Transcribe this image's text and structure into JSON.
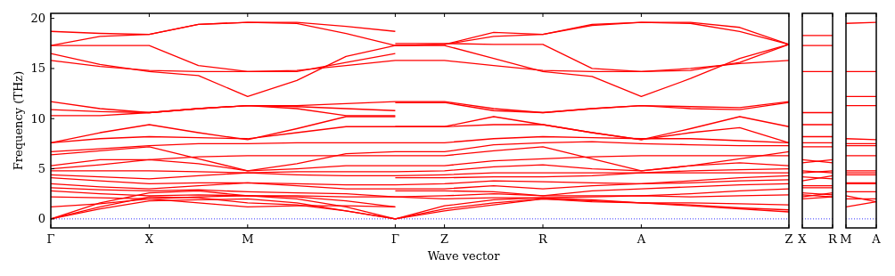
{
  "chart_data": [
    {
      "type": "line",
      "xlabel": "Wave vector",
      "ylabel": "Frequency (THz)",
      "ylim": [
        -0.9,
        20.5
      ],
      "yticks": [
        0,
        5,
        10,
        15,
        20
      ],
      "categories": [
        "Γ",
        null,
        "X",
        null,
        "M",
        null,
        null,
        "Γ",
        "Z",
        null,
        "R",
        null,
        "A",
        null,
        null,
        "Z"
      ],
      "ref_lines": [
        {
          "axis": "y",
          "value": 0,
          "color": "#0000ff",
          "line_style": "dotted"
        }
      ],
      "series": [
        {
          "color": "#ff0000",
          "values": [
            18.7,
            18.5,
            18.4,
            19.4,
            19.6,
            19.6,
            19.2,
            18.7,
            null,
            null,
            null,
            null,
            null,
            null,
            null,
            null
          ]
        },
        {
          "color": "#ff0000",
          "values": [
            17.3,
            18.2,
            18.4,
            19.4,
            19.6,
            19.5,
            18.5,
            17.3,
            17.4,
            18.6,
            18.4,
            19.4,
            19.6,
            19.6,
            19.1,
            17.4
          ]
        },
        {
          "color": "#ff0000",
          "values": [
            17.3,
            17.3,
            17.3,
            15.3,
            14.7,
            14.7,
            15.6,
            16.5,
            null,
            null,
            null,
            null,
            null,
            null,
            null,
            null
          ]
        },
        {
          "color": "#ff0000",
          "values": [
            16.5,
            15.4,
            14.7,
            14.3,
            12.2,
            13.8,
            16.2,
            17.3,
            17.4,
            18.2,
            18.4,
            19.3,
            19.6,
            19.5,
            18.7,
            17.4
          ]
        },
        {
          "color": "#ff0000",
          "values": [
            15.8,
            15.2,
            14.8,
            14.7,
            14.7,
            14.8,
            15.3,
            15.8,
            15.8,
            15.3,
            14.8,
            14.7,
            14.7,
            15.0,
            15.5,
            15.8
          ]
        },
        {
          "color": "#ff0000",
          "values": [
            11.7,
            11.0,
            10.6,
            11.0,
            11.3,
            11.3,
            11.5,
            11.7,
            11.7,
            11.0,
            10.6,
            11.0,
            11.3,
            11.2,
            11.1,
            11.7
          ]
        },
        {
          "color": "#ff0000",
          "values": [
            10.9,
            10.7,
            10.6,
            11.0,
            11.3,
            11.2,
            11.0,
            10.8,
            null,
            null,
            null,
            null,
            null,
            null,
            null,
            null
          ]
        },
        {
          "color": "#ff0000",
          "values": [
            10.3,
            10.3,
            10.6,
            11.0,
            11.3,
            11.0,
            10.3,
            10.3,
            null,
            null,
            null,
            null,
            null,
            null,
            null,
            null
          ]
        },
        {
          "color": "#ff0000",
          "values": [
            7.6,
            8.6,
            9.4,
            8.6,
            7.9,
            9.0,
            10.2,
            10.2,
            null,
            null,
            null,
            null,
            null,
            null,
            null,
            null
          ]
        },
        {
          "color": "#ff0000",
          "values": [
            7.6,
            8.0,
            8.2,
            8.1,
            8.0,
            8.6,
            9.2,
            9.2,
            9.2,
            10.2,
            9.4,
            8.6,
            7.9,
            9.0,
            10.2,
            9.2
          ]
        },
        {
          "color": "#ff0000",
          "values": [
            6.7,
            7.0,
            7.3,
            7.5,
            7.5,
            7.6,
            7.6,
            7.6,
            7.6,
            8.0,
            8.2,
            8.1,
            8.0,
            8.0,
            7.8,
            7.6
          ]
        },
        {
          "color": "#ff0000",
          "values": [
            6.4,
            6.8,
            7.2,
            6.0,
            4.8,
            5.5,
            6.5,
            6.7,
            6.7,
            7.4,
            7.6,
            7.7,
            7.5,
            7.4,
            7.3,
            7.3
          ]
        },
        {
          "color": "#ff0000",
          "values": [
            5.3,
            5.9,
            5.9,
            6.2,
            6.3,
            6.3,
            6.3,
            6.3,
            6.3,
            6.8,
            7.2,
            6.0,
            4.8,
            5.3,
            6.0,
            6.7
          ]
        },
        {
          "color": "#ff0000",
          "values": [
            5.0,
            5.4,
            5.9,
            5.5,
            4.8,
            5.0,
            5.3,
            5.3,
            5.3,
            5.8,
            6.0,
            6.2,
            6.3,
            6.3,
            6.3,
            6.3
          ]
        },
        {
          "color": "#ff0000",
          "values": [
            4.8,
            4.8,
            4.8,
            4.7,
            4.6,
            4.7,
            4.7,
            4.7,
            4.8,
            5.2,
            5.4,
            5.0,
            4.8,
            5.3,
            5.6,
            5.3
          ]
        },
        {
          "color": "#ff0000",
          "values": [
            4.4,
            4.2,
            4.0,
            4.3,
            4.6,
            4.4,
            4.3,
            4.3,
            4.4,
            4.6,
            4.6,
            4.6,
            4.6,
            4.8,
            4.9,
            5.0
          ]
        },
        {
          "color": "#ff0000",
          "values": [
            4.1,
            3.8,
            3.5,
            3.6,
            3.6,
            3.5,
            3.4,
            3.4,
            3.5,
            3.8,
            3.7,
            3.6,
            3.5,
            3.8,
            4.1,
            4.3
          ]
        },
        {
          "color": "#ff0000",
          "values": [
            3.5,
            3.2,
            3.0,
            3.3,
            3.6,
            3.3,
            3.0,
            3.0,
            3.0,
            3.3,
            3.0,
            3.3,
            3.5,
            3.6,
            3.8,
            3.9
          ]
        },
        {
          "color": "#ff0000",
          "values": [
            3.1,
            2.9,
            2.8,
            2.9,
            2.7,
            2.6,
            2.5,
            2.2,
            2.0,
            2.1,
            2.1,
            2.2,
            2.3,
            2.2,
            2.3,
            2.4
          ]
        },
        {
          "color": "#ff0000",
          "values": [
            2.8,
            2.5,
            2.3,
            2.4,
            2.3,
            2.3,
            2.2,
            2.2,
            2.3,
            2.5,
            2.3,
            2.3,
            2.3,
            2.5,
            2.8,
            3.0
          ]
        },
        {
          "color": "#ff0000",
          "values": [
            2.2,
            2.1,
            2.0,
            2.2,
            2.3,
            2.2,
            1.8,
            1.2,
            null,
            null,
            null,
            null,
            null,
            null,
            null,
            null
          ]
        },
        {
          "color": "#ff0000",
          "values": [
            1.2,
            1.5,
            2.0,
            1.6,
            1.2,
            1.3,
            1.3,
            1.2,
            null,
            null,
            null,
            null,
            null,
            null,
            null,
            null
          ]
        },
        {
          "color": "#ff0000",
          "values": [
            0,
            1.0,
            1.8,
            1.9,
            2.0,
            1.6,
            0.8,
            0,
            1.3,
            1.9,
            2.1,
            1.9,
            1.6,
            1.6,
            1.5,
            1.4
          ]
        },
        {
          "color": "#ff0000",
          "values": [
            0,
            1.2,
            2.2,
            2.1,
            1.6,
            1.4,
            0.8,
            0,
            1.0,
            1.6,
            2.0,
            1.8,
            1.6,
            1.4,
            1.1,
            0.9
          ]
        },
        {
          "color": "#ff0000",
          "values": [
            0,
            1.6,
            2.6,
            2.8,
            2.3,
            2.0,
            1.2,
            0,
            0.8,
            1.4,
            2.0,
            1.7,
            1.6,
            1.3,
            1.0,
            0.7
          ]
        },
        {
          "color": "#ff0000",
          "values": [
            null,
            null,
            null,
            null,
            null,
            null,
            null,
            17.5,
            17.5,
            17.4,
            17.4,
            15.0,
            14.7,
            14.8,
            15.6,
            17.4
          ]
        },
        {
          "color": "#ff0000",
          "values": [
            null,
            null,
            null,
            null,
            null,
            null,
            null,
            17.3,
            17.3,
            16.0,
            14.7,
            14.2,
            12.2,
            14.0,
            16.0,
            17.4
          ]
        },
        {
          "color": "#ff0000",
          "values": [
            null,
            null,
            null,
            null,
            null,
            null,
            null,
            11.6,
            11.6,
            10.8,
            10.6,
            11.0,
            11.3,
            11.0,
            10.9,
            11.6
          ]
        },
        {
          "color": "#ff0000",
          "values": [
            null,
            null,
            null,
            null,
            null,
            null,
            null,
            9.2,
            9.2,
            9.4,
            9.4,
            8.6,
            7.9,
            8.6,
            9.1,
            7.6
          ]
        },
        {
          "color": "#ff0000",
          "values": [
            null,
            null,
            null,
            null,
            null,
            null,
            null,
            4.1,
            4.1,
            4.2,
            4.2,
            4.3,
            4.6,
            4.6,
            4.6,
            4.6
          ]
        },
        {
          "color": "#ff0000",
          "values": [
            null,
            null,
            null,
            null,
            null,
            null,
            null,
            2.8,
            2.8,
            2.7,
            2.3,
            2.8,
            3.0,
            3.2,
            3.4,
            3.5
          ]
        }
      ]
    },
    {
      "type": "line",
      "ylim": [
        -0.9,
        20.5
      ],
      "yticks": [
        0,
        5,
        10,
        15,
        20
      ],
      "tick_labels": "x",
      "categories": [
        "X",
        "R"
      ],
      "ref_lines": [
        {
          "axis": "y",
          "value": 0,
          "color": "#0000ff",
          "line_style": "dotted"
        }
      ],
      "series": [
        {
          "color": "#ff0000",
          "values": [
            18.3,
            18.3
          ]
        },
        {
          "color": "#ff0000",
          "values": [
            17.3,
            17.3
          ]
        },
        {
          "color": "#ff0000",
          "values": [
            14.7,
            14.7
          ]
        },
        {
          "color": "#ff0000",
          "values": [
            10.6,
            10.6
          ]
        },
        {
          "color": "#ff0000",
          "values": [
            9.4,
            9.4
          ]
        },
        {
          "color": "#ff0000",
          "values": [
            8.2,
            8.2
          ]
        },
        {
          "color": "#ff0000",
          "values": [
            7.6,
            7.6
          ]
        },
        {
          "color": "#ff0000",
          "values": [
            7.2,
            7.2
          ]
        },
        {
          "color": "#ff0000",
          "values": [
            5.6,
            5.9
          ]
        },
        {
          "color": "#ff0000",
          "values": [
            5.9,
            5.6
          ]
        },
        {
          "color": "#ff0000",
          "values": [
            4.8,
            4.6
          ]
        },
        {
          "color": "#ff0000",
          "values": [
            4.6,
            4.8
          ]
        },
        {
          "color": "#ff0000",
          "values": [
            3.8,
            4.3
          ]
        },
        {
          "color": "#ff0000",
          "values": [
            4.2,
            4.0
          ]
        },
        {
          "color": "#ff0000",
          "values": [
            3.3,
            3.3
          ]
        },
        {
          "color": "#ff0000",
          "values": [
            3.1,
            3.1
          ]
        },
        {
          "color": "#ff0000",
          "values": [
            2.6,
            2.4
          ]
        },
        {
          "color": "#ff0000",
          "values": [
            2.4,
            2.2
          ]
        },
        {
          "color": "#ff0000",
          "values": [
            2.2,
            2.6
          ]
        },
        {
          "color": "#ff0000",
          "values": [
            2.0,
            2.2
          ]
        }
      ]
    },
    {
      "type": "line",
      "ylim": [
        -0.9,
        20.5
      ],
      "yticks": [
        0,
        5,
        10,
        15,
        20
      ],
      "tick_labels": "x",
      "categories": [
        "M",
        "A"
      ],
      "ref_lines": [
        {
          "axis": "y",
          "value": 0,
          "color": "#0000ff",
          "line_style": "dotted"
        }
      ],
      "series": [
        {
          "color": "#ff0000",
          "values": [
            19.5,
            19.6
          ]
        },
        {
          "color": "#ff0000",
          "values": [
            14.7,
            14.7
          ]
        },
        {
          "color": "#ff0000",
          "values": [
            12.2,
            12.2
          ]
        },
        {
          "color": "#ff0000",
          "values": [
            11.3,
            11.3
          ]
        },
        {
          "color": "#ff0000",
          "values": [
            8.0,
            7.9
          ]
        },
        {
          "color": "#ff0000",
          "values": [
            7.5,
            7.5
          ]
        },
        {
          "color": "#ff0000",
          "values": [
            7.3,
            7.3
          ]
        },
        {
          "color": "#ff0000",
          "values": [
            6.3,
            6.3
          ]
        },
        {
          "color": "#ff0000",
          "values": [
            4.8,
            4.8
          ]
        },
        {
          "color": "#ff0000",
          "values": [
            4.6,
            4.6
          ]
        },
        {
          "color": "#ff0000",
          "values": [
            4.4,
            4.4
          ]
        },
        {
          "color": "#ff0000",
          "values": [
            3.6,
            3.6
          ]
        },
        {
          "color": "#ff0000",
          "values": [
            3.5,
            3.5
          ]
        },
        {
          "color": "#ff0000",
          "values": [
            2.7,
            2.7
          ]
        },
        {
          "color": "#ff0000",
          "values": [
            2.3,
            1.7
          ]
        },
        {
          "color": "#ff0000",
          "values": [
            1.2,
            1.7
          ]
        },
        {
          "color": "#ff0000",
          "values": [
            2.0,
            2.0
          ]
        }
      ]
    }
  ]
}
